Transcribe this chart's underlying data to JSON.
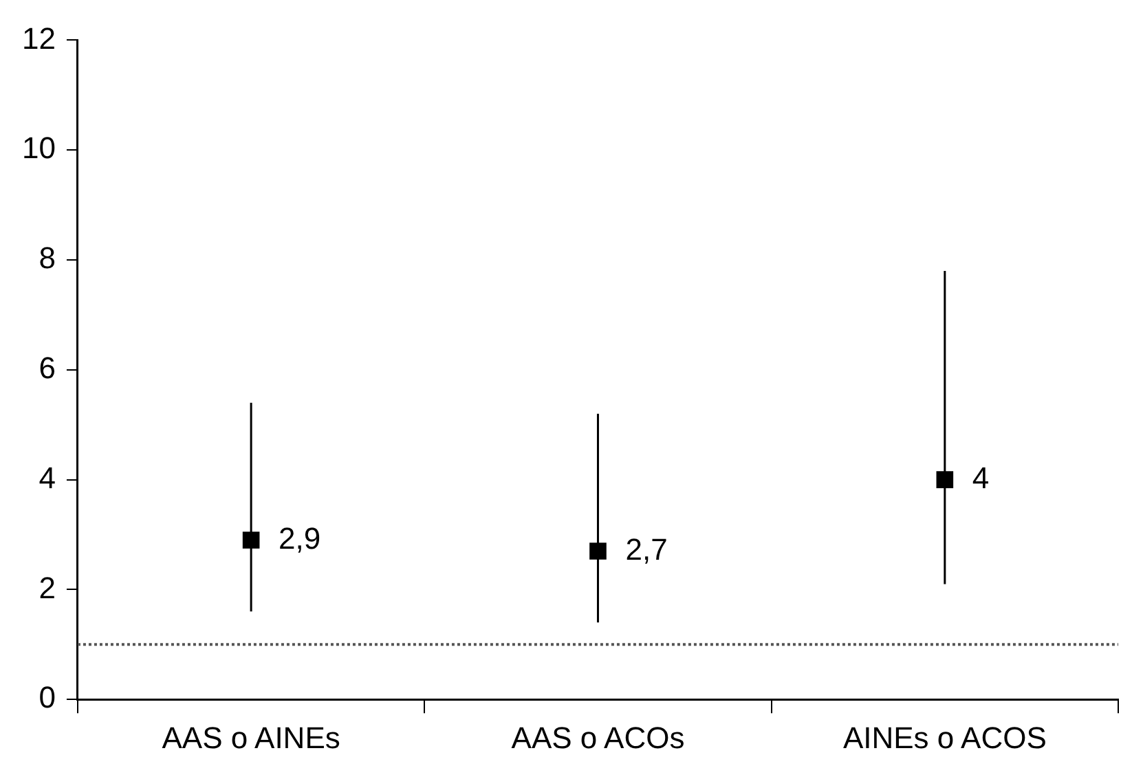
{
  "chart_data": {
    "type": "scatter",
    "categories": [
      "AAS o AINEs",
      "AAS o ACOs",
      "AINEs o ACOS"
    ],
    "values": [
      2.9,
      2.7,
      4
    ],
    "value_labels": [
      "2,9",
      "2,7",
      "4"
    ],
    "errors": [
      [
        1.6,
        5.4
      ],
      [
        1.4,
        5.2
      ],
      [
        2.1,
        7.8
      ]
    ],
    "color": "#000000",
    "marker": "square",
    "ylim": [
      0,
      12
    ],
    "yticks": [
      0,
      2,
      4,
      6,
      8,
      10,
      12
    ],
    "ref_lines": [
      {
        "axis": "y",
        "value": 1,
        "line_style": "dotted",
        "color": "#555555"
      }
    ],
    "grid": false,
    "legend": false
  }
}
